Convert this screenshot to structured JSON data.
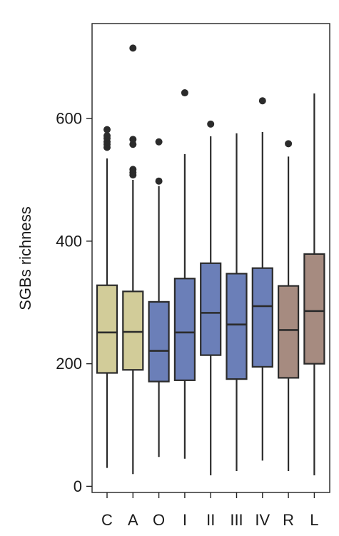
{
  "chart_data": {
    "type": "box",
    "title": "",
    "xlabel": "",
    "ylabel": "SGBs richness",
    "ylim": [
      -10,
      755
    ],
    "yticks": [
      0,
      200,
      400,
      600
    ],
    "grid": false,
    "legend": "none",
    "categories": [
      "C",
      "A",
      "O",
      "I",
      "II",
      "III",
      "IV",
      "R",
      "L"
    ],
    "boxes": [
      {
        "category": "C",
        "whisker_low": 30,
        "q1": 185,
        "median": 251,
        "q3": 328,
        "whisker_high": 535,
        "outliers": [
          553,
          558,
          562,
          568,
          572,
          582
        ],
        "color": "#d2cc99"
      },
      {
        "category": "A",
        "whisker_low": 20,
        "q1": 190,
        "median": 252,
        "q3": 318,
        "whisker_high": 500,
        "outliers": [
          508,
          512,
          517,
          558,
          566,
          715
        ],
        "color": "#d2cc99"
      },
      {
        "category": "O",
        "whisker_low": 48,
        "q1": 171,
        "median": 221,
        "q3": 301,
        "whisker_high": 490,
        "outliers": [
          498,
          562
        ],
        "color": "#6b7fb8"
      },
      {
        "category": "I",
        "whisker_low": 45,
        "q1": 173,
        "median": 251,
        "q3": 339,
        "whisker_high": 542,
        "outliers": [
          642
        ],
        "color": "#6b7fb8"
      },
      {
        "category": "II",
        "whisker_low": 18,
        "q1": 214,
        "median": 283,
        "q3": 364,
        "whisker_high": 571,
        "outliers": [
          591
        ],
        "color": "#6b7fb8"
      },
      {
        "category": "III",
        "whisker_low": 25,
        "q1": 175,
        "median": 264,
        "q3": 347,
        "whisker_high": 576,
        "outliers": [],
        "color": "#6b7fb8"
      },
      {
        "category": "IV",
        "whisker_low": 42,
        "q1": 195,
        "median": 294,
        "q3": 356,
        "whisker_high": 578,
        "outliers": [
          629
        ],
        "color": "#6b7fb8"
      },
      {
        "category": "R",
        "whisker_low": 25,
        "q1": 177,
        "median": 255,
        "q3": 327,
        "whisker_high": 538,
        "outliers": [
          559
        ],
        "color": "#a68b80"
      },
      {
        "category": "L",
        "whisker_low": 18,
        "q1": 200,
        "median": 286,
        "q3": 379,
        "whisker_high": 641,
        "outliers": [],
        "color": "#a68b80"
      }
    ]
  }
}
